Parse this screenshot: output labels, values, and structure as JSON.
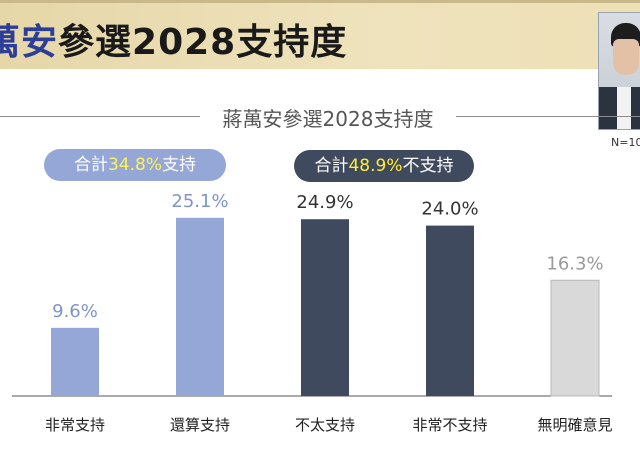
{
  "header": {
    "title_highlight": "萬安",
    "title_rest": "參選2028支持度",
    "sample_note": "N=10"
  },
  "chart_data": {
    "type": "bar",
    "title": "蔣萬安參選2028支持度",
    "categories": [
      "非常支持",
      "還算支持",
      "不太支持",
      "非常不支持",
      "無明確意見"
    ],
    "values": [
      9.6,
      25.1,
      24.9,
      24.0,
      16.3
    ],
    "value_labels": [
      "9.6%",
      "25.1%",
      "24.9%",
      "24.0%",
      "16.3%"
    ],
    "ylim": [
      0,
      30
    ],
    "grid": false,
    "colors": {
      "support": "#95a7d6",
      "oppose": "#404a5e",
      "neutral": "#d9d9d9",
      "support_label": "#7f95c9",
      "oppose_label": "#333333",
      "neutral_label": "#9a9a9a"
    },
    "bar_groups": [
      "support",
      "support",
      "oppose",
      "oppose",
      "neutral"
    ],
    "summaries": {
      "support": {
        "prefix": "合計",
        "value": "34.8%",
        "suffix": "支持"
      },
      "oppose": {
        "prefix": "合計",
        "value": "48.9%",
        "suffix": "不支持"
      }
    }
  }
}
